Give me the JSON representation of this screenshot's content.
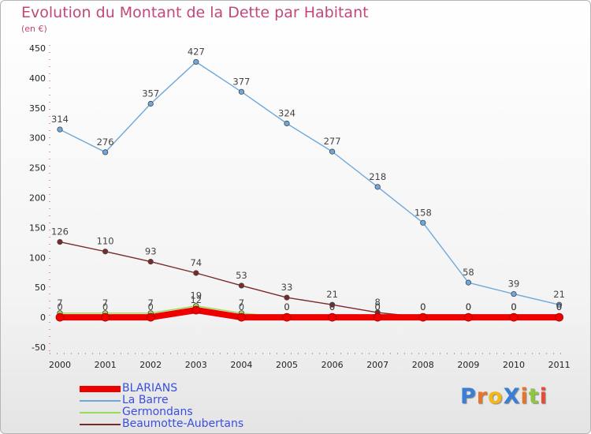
{
  "title": "Evolution du Montant de la Dette par Habitant",
  "subtitle": "(en €)",
  "brand": "ProXiti",
  "chart_data": {
    "type": "line",
    "x": [
      "2000",
      "2001",
      "2002",
      "2003",
      "2004",
      "2005",
      "2006",
      "2007",
      "2008",
      "2009",
      "2010",
      "2011"
    ],
    "y_ticks": [
      450,
      400,
      350,
      300,
      250,
      200,
      150,
      100,
      50,
      0,
      -50
    ],
    "ylim": [
      -50,
      450
    ],
    "grid": false,
    "legend_position": "bottom-left",
    "series": [
      {
        "name": "BLARIANS",
        "color": "#ee0000",
        "values": [
          0,
          0,
          0,
          12,
          0,
          0,
          0,
          0,
          0,
          0,
          0,
          0
        ],
        "labels": [
          "0",
          "0",
          "0",
          "12",
          "0",
          "0",
          "0",
          "0",
          "0",
          "0",
          "0",
          "0"
        ]
      },
      {
        "name": "La Barre",
        "color": "#6fa8dc",
        "values": [
          314,
          276,
          357,
          427,
          377,
          324,
          277,
          218,
          158,
          58,
          39,
          21
        ],
        "labels": [
          "314",
          "276",
          "357",
          "427",
          "377",
          "324",
          "277",
          "218",
          "158",
          "58",
          "39",
          "21"
        ]
      },
      {
        "name": "Germondans",
        "color": "#99dd55",
        "values": [
          7,
          7,
          7,
          19,
          7,
          0,
          0,
          0,
          0,
          0,
          0,
          0
        ],
        "labels": [
          "7",
          "7",
          "7",
          "19",
          "7",
          "0",
          "0",
          "0",
          "0",
          "0",
          "0",
          "0"
        ]
      },
      {
        "name": "Beaumotte-Aubertans",
        "color": "#7a2a2a",
        "values": [
          126,
          110,
          93,
          74,
          53,
          33,
          21,
          8,
          0,
          0,
          0,
          0
        ],
        "labels": [
          "126",
          "110",
          "93",
          "74",
          "53",
          "33",
          "21",
          "8",
          "0",
          "0",
          "0",
          "0"
        ]
      }
    ]
  }
}
